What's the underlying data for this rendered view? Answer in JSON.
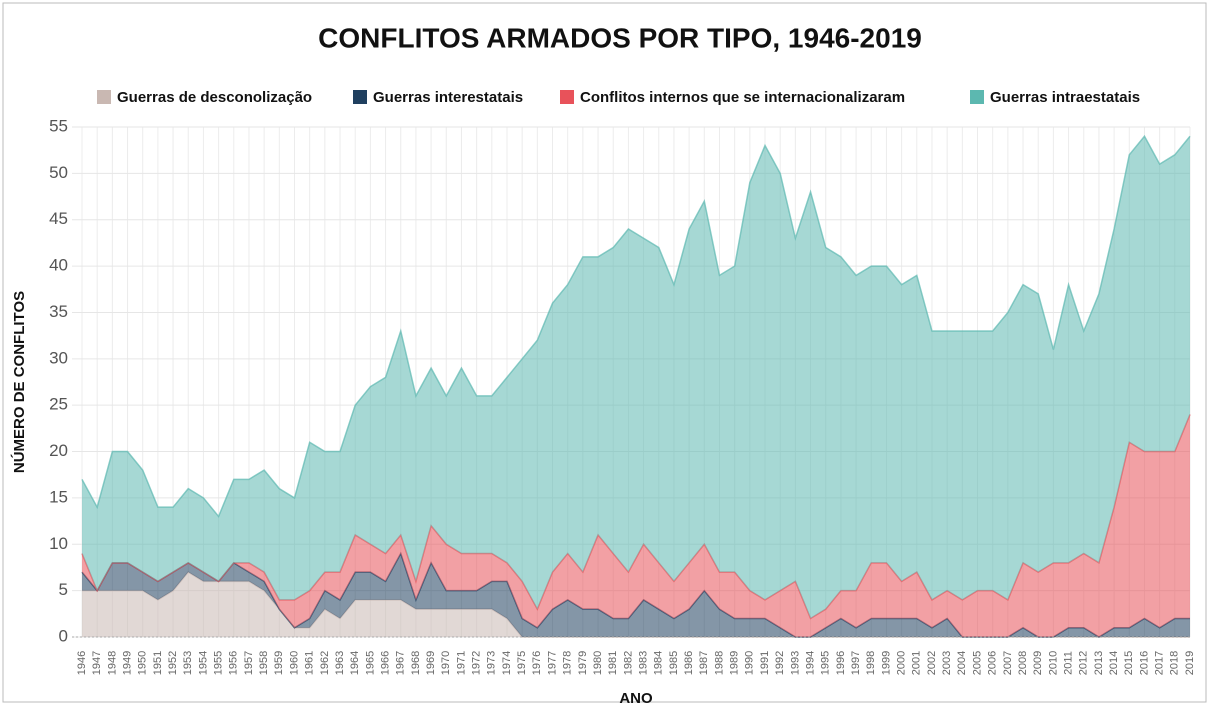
{
  "chart_data": {
    "type": "stacked_area",
    "title": "CONFLITOS ARMADOS POR TIPO, 1946-2019",
    "y_label": "NÚMERO DE CONFLITOS",
    "x_label": "ANO",
    "categories": [
      "1946",
      "1947",
      "1948",
      "1949",
      "1950",
      "1951",
      "1952",
      "1953",
      "1954",
      "1955",
      "1956",
      "1957",
      "1958",
      "1959",
      "1960",
      "1961",
      "1962",
      "1963",
      "1964",
      "1965",
      "1966",
      "1967",
      "1968",
      "1969",
      "1970",
      "1971",
      "1972",
      "1973",
      "1974",
      "1975",
      "1976",
      "1977",
      "1978",
      "1979",
      "1980",
      "1981",
      "1982",
      "1983",
      "1984",
      "1985",
      "1986",
      "1987",
      "1988",
      "1989",
      "1990",
      "1991",
      "1992",
      "1993",
      "1994",
      "1995",
      "1996",
      "1997",
      "1998",
      "1999",
      "2000",
      "2001",
      "2002",
      "2003",
      "2004",
      "2005",
      "2006",
      "2007",
      "2008",
      "2009",
      "2010",
      "2011",
      "2012",
      "2013",
      "2014",
      "2015",
      "2016",
      "2017",
      "2018",
      "2019"
    ],
    "series": [
      {
        "name": "Guerras de desconolização",
        "color": "#c9b8b2",
        "values": [
          5,
          5,
          5,
          5,
          5,
          4,
          5,
          7,
          6,
          6,
          6,
          6,
          5,
          3,
          1,
          1,
          3,
          2,
          4,
          4,
          4,
          4,
          3,
          3,
          3,
          3,
          3,
          3,
          2,
          0,
          0,
          0,
          0,
          0,
          0,
          0,
          0,
          0,
          0,
          0,
          0,
          0,
          0,
          0,
          0,
          0,
          0,
          0,
          0,
          0,
          0,
          0,
          0,
          0,
          0,
          0,
          0,
          0,
          0,
          0,
          0,
          0,
          0,
          0,
          0,
          0,
          0,
          0,
          0,
          0,
          0,
          0,
          0,
          0
        ]
      },
      {
        "name": "Guerras interestatais",
        "color": "#1f3f5f",
        "values": [
          2,
          0,
          3,
          3,
          2,
          2,
          2,
          1,
          1,
          0,
          2,
          1,
          1,
          0,
          0,
          1,
          2,
          2,
          3,
          3,
          2,
          5,
          1,
          5,
          2,
          2,
          2,
          3,
          4,
          2,
          1,
          3,
          4,
          3,
          3,
          2,
          2,
          4,
          3,
          2,
          3,
          5,
          3,
          2,
          2,
          2,
          1,
          0,
          0,
          1,
          2,
          1,
          2,
          2,
          2,
          2,
          1,
          2,
          0,
          0,
          0,
          0,
          1,
          0,
          0,
          1,
          1,
          0,
          1,
          1,
          2,
          1,
          2,
          2
        ]
      },
      {
        "name": "Conflitos internos que se internacionalizaram",
        "color": "#e8525a",
        "values": [
          2,
          0,
          0,
          0,
          0,
          0,
          0,
          0,
          0,
          0,
          0,
          1,
          1,
          1,
          3,
          3,
          2,
          3,
          4,
          3,
          3,
          2,
          2,
          4,
          5,
          4,
          4,
          3,
          2,
          4,
          2,
          4,
          5,
          4,
          8,
          7,
          5,
          6,
          5,
          4,
          5,
          5,
          4,
          5,
          3,
          2,
          4,
          6,
          2,
          2,
          3,
          4,
          6,
          6,
          4,
          5,
          3,
          3,
          4,
          5,
          5,
          4,
          7,
          7,
          8,
          7,
          8,
          8,
          13,
          20,
          18,
          19,
          18,
          22
        ]
      },
      {
        "name": "Guerras intraestatais",
        "color": "#5cb8b0",
        "values": [
          8,
          9,
          12,
          12,
          11,
          8,
          7,
          8,
          8,
          7,
          9,
          9,
          11,
          12,
          11,
          16,
          13,
          13,
          14,
          17,
          19,
          22,
          20,
          17,
          16,
          20,
          17,
          17,
          20,
          24,
          29,
          29,
          29,
          34,
          30,
          33,
          37,
          33,
          34,
          32,
          36,
          37,
          32,
          33,
          44,
          49,
          45,
          37,
          46,
          39,
          36,
          34,
          32,
          32,
          32,
          32,
          29,
          28,
          29,
          28,
          28,
          31,
          30,
          30,
          23,
          30,
          24,
          29,
          30,
          31,
          34,
          31,
          32,
          30
        ]
      }
    ],
    "ylim": [
      0,
      55
    ],
    "yticks": [
      0,
      5,
      10,
      15,
      20,
      25,
      30,
      35,
      40,
      45,
      50,
      55
    ],
    "grid": true
  }
}
